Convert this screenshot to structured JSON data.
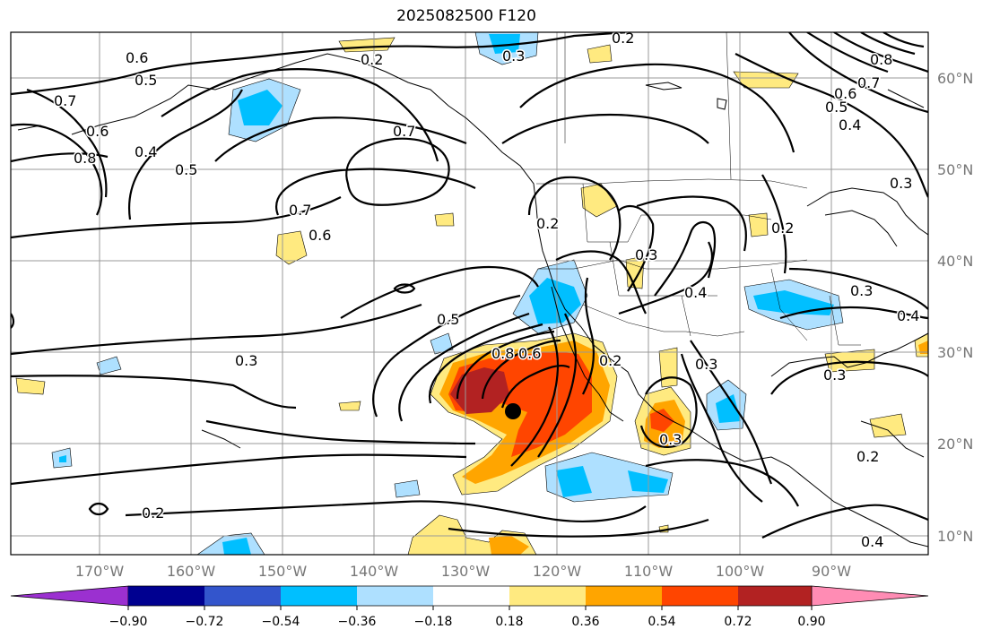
{
  "title": "2025082500 F120",
  "lat_ticks": [
    "60°N",
    "50°N",
    "40°N",
    "30°N",
    "20°N",
    "10°N"
  ],
  "lon_ticks": [
    "170°W",
    "160°W",
    "150°W",
    "140°W",
    "130°W",
    "120°W",
    "110°W",
    "100°W",
    "90°W"
  ],
  "colorbar": {
    "labels": [
      "−0.90",
      "−0.72",
      "−0.54",
      "−0.36",
      "−0.18",
      "0.18",
      "0.36",
      "0.54",
      "0.72",
      "0.90"
    ],
    "colors": [
      "#9b30d0",
      "#000090",
      "#3355cc",
      "#00bfff",
      "#aee0ff",
      "#ffffff",
      "#ffea80",
      "#ffa500",
      "#ff4500",
      "#b22222",
      "#ff8cb4"
    ]
  },
  "contour_labels": [
    "0.2",
    "0.3",
    "0.2",
    "0.6",
    "0.5",
    "0.7",
    "0.6",
    "0.8",
    "0.4",
    "0.5",
    "0.7",
    "0.7",
    "0.6",
    "0.3",
    "0.5",
    "0.8",
    "0.6",
    "0.2",
    "0.3",
    "0.2",
    "0.3",
    "0.4",
    "0.2",
    "0.3",
    "0.3",
    "0.8",
    "0.7",
    "0.6",
    "0.5",
    "0.4",
    "0.3",
    "0.2",
    "0.4",
    "0.3",
    "0.2",
    "0.4"
  ]
}
